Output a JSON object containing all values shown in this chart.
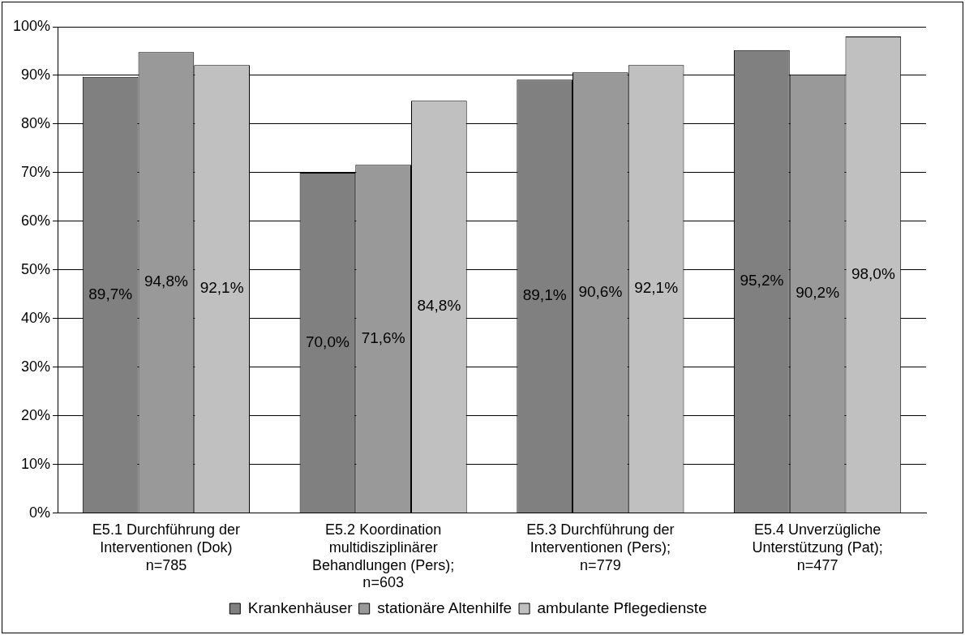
{
  "chart_data": {
    "type": "bar",
    "categories": [
      "E5.1 Durchführung der\nInterventionen (Dok)\nn=785",
      "E5.2 Koordination\nmultidisziplinärer\nBehandlungen (Pers);\nn=603",
      "E5.3 Durchführung der\nInterventionen (Pers);\nn=779",
      "E5.4 Unverzügliche\nUnterstützung (Pat);\nn=477"
    ],
    "series": [
      {
        "name": "Krankenhäuser",
        "color": "#808080",
        "values": [
          89.7,
          70.0,
          89.1,
          95.2
        ],
        "value_labels": [
          "89,7%",
          "70,0%",
          "89,1%",
          "95,2%"
        ]
      },
      {
        "name": "stationäre Altenhilfe",
        "color": "#999999",
        "values": [
          94.8,
          71.6,
          90.6,
          90.2
        ],
        "value_labels": [
          "94,8%",
          "71,6%",
          "90,6%",
          "90,2%"
        ]
      },
      {
        "name": "ambulante Pflegedienste",
        "color": "#c0c0c0",
        "values": [
          92.1,
          84.8,
          92.1,
          98.0
        ],
        "value_labels": [
          "92,1%",
          "84,8%",
          "92,1%",
          "98,0%"
        ]
      }
    ],
    "ylim": [
      0,
      100
    ],
    "yticks": [
      {
        "value": 0,
        "label": "0%"
      },
      {
        "value": 10,
        "label": "10%"
      },
      {
        "value": 20,
        "label": "20%"
      },
      {
        "value": 30,
        "label": "30%"
      },
      {
        "value": 40,
        "label": "40%"
      },
      {
        "value": 50,
        "label": "50%"
      },
      {
        "value": 60,
        "label": "60%"
      },
      {
        "value": 70,
        "label": "70%"
      },
      {
        "value": 80,
        "label": "80%"
      },
      {
        "value": 90,
        "label": "90%"
      },
      {
        "value": 100,
        "label": "100%"
      }
    ],
    "grid": "y",
    "legend": "bottom"
  }
}
